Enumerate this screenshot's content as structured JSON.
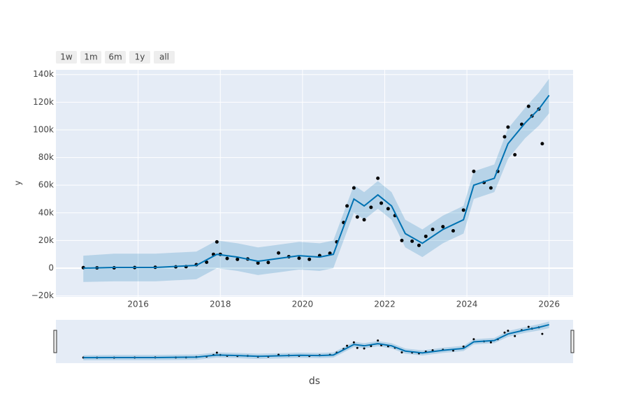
{
  "chart_data": {
    "type": "forecast",
    "ylabel": "y",
    "xlabel": "ds",
    "buttons": [
      "1w",
      "1m",
      "6m",
      "1y",
      "all"
    ],
    "xlim": [
      "2014-01",
      "2026-08"
    ],
    "ylim": [
      -20700,
      143400
    ],
    "xticks": [
      {
        "value": "2016-01",
        "label": "2016"
      },
      {
        "value": "2018-01",
        "label": "2018"
      },
      {
        "value": "2020-01",
        "label": "2020"
      },
      {
        "value": "2022-01",
        "label": "2022"
      },
      {
        "value": "2024-01",
        "label": "2024"
      },
      {
        "value": "2026-01",
        "label": "2026"
      }
    ],
    "yticks": [
      {
        "value": -20000,
        "label": "−20k"
      },
      0,
      {
        "value": 20000,
        "label": "20k"
      },
      {
        "value": 40000,
        "label": "40k"
      },
      {
        "value": 60000,
        "label": "60k"
      },
      {
        "value": 80000,
        "label": "80k"
      },
      {
        "value": 100000,
        "label": "100k"
      },
      {
        "value": 120000,
        "label": "120k"
      },
      {
        "value": 140000,
        "label": "140k"
      }
    ],
    "grid": true,
    "rangeslider": true,
    "points": {
      "color": "#000000",
      "x": [
        "2014-09",
        "2015-01",
        "2015-06",
        "2015-12",
        "2016-06",
        "2016-12",
        "2017-03",
        "2017-06",
        "2017-09",
        "2017-11",
        "2017-12",
        "2018-01",
        "2018-03",
        "2018-06",
        "2018-09",
        "2018-12",
        "2019-03",
        "2019-06",
        "2019-09",
        "2019-12",
        "2020-03",
        "2020-06",
        "2020-09",
        "2020-11",
        "2021-01",
        "2021-02",
        "2021-04",
        "2021-05",
        "2021-07",
        "2021-09",
        "2021-11",
        "2021-12",
        "2022-02",
        "2022-04",
        "2022-06",
        "2022-09",
        "2022-11",
        "2023-01",
        "2023-03",
        "2023-06",
        "2023-09",
        "2023-12",
        "2024-03",
        "2024-06",
        "2024-08",
        "2024-10",
        "2024-12",
        "2025-01",
        "2025-03",
        "2025-05",
        "2025-07",
        "2025-08",
        "2025-10",
        "2025-11"
      ],
      "values": [
        400,
        220,
        250,
        430,
        650,
        960,
        1100,
        2500,
        4300,
        10000,
        19000,
        10000,
        7000,
        6400,
        6600,
        3700,
        4100,
        11000,
        8300,
        7200,
        6400,
        9100,
        10800,
        19000,
        33000,
        45000,
        58000,
        37000,
        35000,
        44000,
        65000,
        47000,
        43000,
        38000,
        20000,
        19500,
        16500,
        23000,
        28000,
        30000,
        27000,
        42000,
        70000,
        62000,
        58000,
        70000,
        95000,
        102000,
        82000,
        104000,
        117000,
        110000,
        115000,
        90000
      ]
    },
    "forecast": {
      "color": "#0072B2",
      "band_color": "rgba(0,114,178,0.2)",
      "x": [
        "2014-09",
        "2015-06",
        "2016-06",
        "2017-06",
        "2017-12",
        "2018-06",
        "2018-12",
        "2019-06",
        "2019-12",
        "2020-06",
        "2020-10",
        "2021-01",
        "2021-04",
        "2021-07",
        "2021-11",
        "2022-03",
        "2022-07",
        "2022-12",
        "2023-06",
        "2023-12",
        "2024-03",
        "2024-09",
        "2025-01",
        "2025-06",
        "2025-10",
        "2026-01"
      ],
      "values": [
        0,
        500,
        500,
        2000,
        10000,
        8000,
        5000,
        7000,
        9000,
        8000,
        10000,
        30000,
        50000,
        45000,
        53000,
        45000,
        25000,
        18000,
        28000,
        35000,
        60000,
        65000,
        90000,
        105000,
        115000,
        125000
      ],
      "lower": [
        -10000,
        -9500,
        -9500,
        -8000,
        0,
        -2000,
        -5000,
        -3000,
        -1000,
        -2000,
        0,
        20000,
        40000,
        35000,
        43000,
        35000,
        15000,
        8000,
        18000,
        25000,
        50000,
        55000,
        79000,
        94000,
        103000,
        112000
      ],
      "upper": [
        9000,
        10500,
        10500,
        12000,
        20000,
        18000,
        15000,
        17000,
        19000,
        18000,
        20000,
        40000,
        60000,
        55000,
        63000,
        55000,
        35000,
        28000,
        38000,
        45000,
        70000,
        75000,
        101000,
        116000,
        127000,
        137000
      ]
    }
  }
}
